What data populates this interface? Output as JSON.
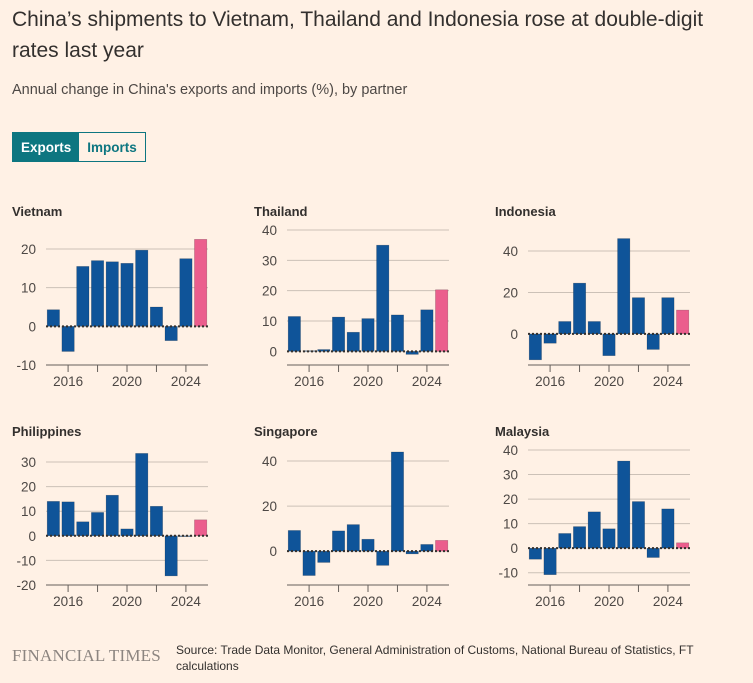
{
  "header": {
    "title": "China’s shipments to Vietnam, Thailand and Indonesia rose at double-digit rates last year",
    "subtitle": "Annual change in China's exports and imports (%), by partner"
  },
  "toggle": {
    "options": [
      {
        "label": "Exports",
        "active": true
      },
      {
        "label": "Imports",
        "active": false
      }
    ]
  },
  "colors": {
    "bar": "#0f5499",
    "highlight": "#eb5e8d",
    "background": "#fff1e5",
    "accent": "#0d7680"
  },
  "footer": {
    "logo": "FINANCIAL TIMES",
    "source": "Source: Trade Data Monitor, General Administration of Customs, National Bureau of Statistics, FT calculations"
  },
  "chart_data": [
    {
      "type": "bar",
      "title": "Vietnam",
      "xlabel": "",
      "ylabel": "",
      "x": [
        2015,
        2016,
        2017,
        2018,
        2019,
        2020,
        2021,
        2022,
        2023,
        2024,
        2025
      ],
      "values": [
        4.3,
        -6.5,
        15.5,
        17.0,
        16.7,
        16.3,
        19.7,
        5.0,
        -3.7,
        17.5,
        22.5
      ],
      "highlight_index": 10,
      "ylim": [
        -10,
        25
      ],
      "yticks": [
        -10,
        0,
        10,
        20
      ],
      "xticks": [
        "2016",
        "2020",
        "2024"
      ],
      "grid": true
    },
    {
      "type": "bar",
      "title": "Thailand",
      "xlabel": "",
      "ylabel": "",
      "x": [
        2015,
        2016,
        2017,
        2018,
        2019,
        2020,
        2021,
        2022,
        2023,
        2024,
        2025
      ],
      "values": [
        11.5,
        0.2,
        0.6,
        11.3,
        6.3,
        10.8,
        35.0,
        12.0,
        -1.0,
        13.7,
        20.3
      ],
      "highlight_index": 10,
      "ylim": [
        -4.5,
        40
      ],
      "yticks": [
        0,
        10,
        20,
        30,
        40
      ],
      "xticks": [
        "2016",
        "2020",
        "2024"
      ],
      "grid": true
    },
    {
      "type": "bar",
      "title": "Indonesia",
      "xlabel": "",
      "ylabel": "",
      "x": [
        2015,
        2016,
        2017,
        2018,
        2019,
        2020,
        2021,
        2022,
        2023,
        2024,
        2025
      ],
      "values": [
        -12.5,
        -4.5,
        6.0,
        24.5,
        6.0,
        -10.5,
        46.0,
        17.5,
        -7.5,
        17.5,
        11.5
      ],
      "highlight_index": 10,
      "ylim": [
        -15,
        48
      ],
      "yticks": [
        0,
        20,
        40
      ],
      "xticks": [
        "2016",
        "2020",
        "2024"
      ],
      "grid": true
    },
    {
      "type": "bar",
      "title": "Philippines",
      "xlabel": "",
      "ylabel": "",
      "x": [
        2015,
        2016,
        2017,
        2018,
        2019,
        2020,
        2021,
        2022,
        2023,
        2024,
        2025
      ],
      "values": [
        14.0,
        13.8,
        5.7,
        9.5,
        16.5,
        2.8,
        33.5,
        12.0,
        -16.3,
        -0.3,
        6.5
      ],
      "highlight_index": 10,
      "ylim": [
        -20,
        35
      ],
      "yticks": [
        -20,
        -10,
        0,
        10,
        20,
        30
      ],
      "xticks": [
        "2016",
        "2020",
        "2024"
      ],
      "grid": true
    },
    {
      "type": "bar",
      "title": "Singapore",
      "xlabel": "",
      "ylabel": "",
      "x": [
        2015,
        2016,
        2017,
        2018,
        2019,
        2020,
        2021,
        2022,
        2023,
        2024,
        2025
      ],
      "values": [
        9.2,
        -10.8,
        -5.0,
        9.0,
        11.8,
        5.3,
        -6.3,
        44.0,
        -1.2,
        3.0,
        4.8
      ],
      "highlight_index": 10,
      "ylim": [
        -15,
        48
      ],
      "yticks": [
        0,
        20,
        40
      ],
      "xticks": [
        "2016",
        "2020",
        "2024"
      ],
      "grid": true
    },
    {
      "type": "bar",
      "title": "Malaysia",
      "xlabel": "",
      "ylabel": "",
      "x": [
        2015,
        2016,
        2017,
        2018,
        2019,
        2020,
        2021,
        2022,
        2023,
        2024,
        2025
      ],
      "values": [
        -4.5,
        -10.8,
        6.0,
        8.8,
        14.8,
        7.9,
        35.5,
        19.0,
        -3.8,
        16.0,
        2.2
      ],
      "highlight_index": 10,
      "ylim": [
        -15,
        40
      ],
      "yticks": [
        -10,
        0,
        10,
        20,
        30,
        40
      ],
      "xticks": [
        "2016",
        "2020",
        "2024"
      ],
      "grid": true
    }
  ]
}
